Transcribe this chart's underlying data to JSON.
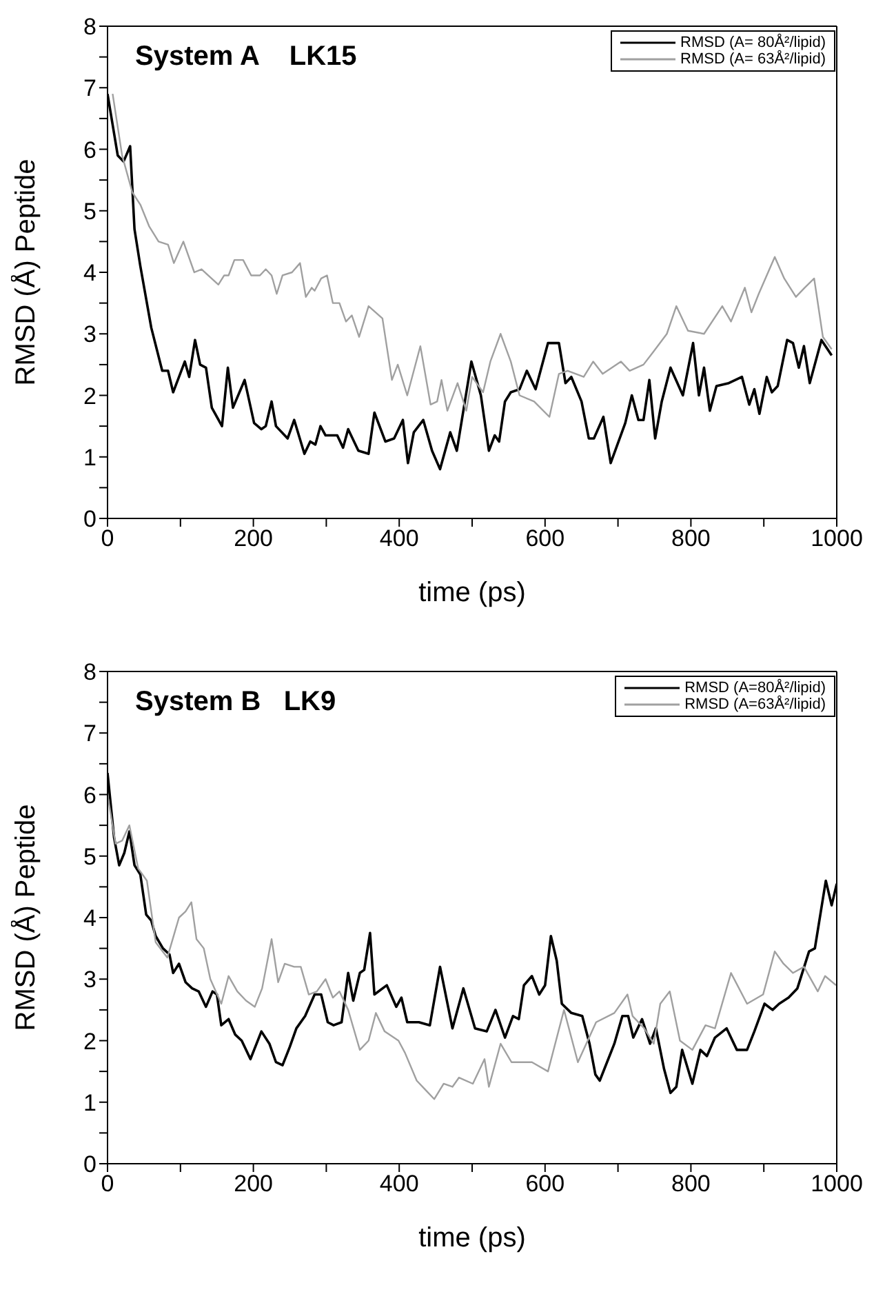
{
  "chart_data": [
    {
      "type": "line",
      "title": "System A    LK15",
      "xlabel": "time (ps)",
      "ylabel": "RMSD (Å) Peptide",
      "xlim": [
        0,
        1000
      ],
      "ylim": [
        0,
        8
      ],
      "xticks": [
        0,
        {
          "value": 100,
          "label": null
        },
        200,
        {
          "value": 300,
          "label": null
        },
        400,
        {
          "value": 500,
          "label": null
        },
        600,
        {
          "value": 700,
          "label": null
        },
        800,
        {
          "value": 900,
          "label": null
        },
        1000
      ],
      "yticks": [
        0,
        {
          "value": 0.5,
          "label": null
        },
        1,
        {
          "value": 1.5,
          "label": null
        },
        2,
        {
          "value": 2.5,
          "label": null
        },
        3,
        {
          "value": 3.5,
          "label": null
        },
        4,
        {
          "value": 4.5,
          "label": null
        },
        5,
        {
          "value": 5.5,
          "label": null
        },
        6,
        {
          "value": 6.5,
          "label": null
        },
        7,
        {
          "value": 7.5,
          "label": null
        },
        8
      ],
      "legend": "top right",
      "marker": "none",
      "line_style": "solid",
      "series": [
        {
          "name": "RMSD (A= 80Å²/lipid)",
          "color": "#000000",
          "x": [
            0,
            14,
            22,
            31,
            37,
            45,
            60,
            75,
            83,
            90,
            106,
            112,
            120,
            127,
            135,
            143,
            157,
            165,
            172,
            188,
            201,
            211,
            217,
            225,
            231,
            247,
            256,
            270,
            278,
            285,
            292,
            299,
            315,
            323,
            330,
            344,
            358,
            366,
            381,
            393,
            405,
            412,
            420,
            433,
            445,
            456,
            470,
            479,
            499,
            512,
            523,
            531,
            537,
            545,
            553,
            565,
            575,
            587,
            604,
            619,
            628,
            636,
            650,
            660,
            667,
            680,
            690,
            710,
            719,
            728,
            735,
            743,
            751,
            760,
            772,
            789,
            803,
            811,
            818,
            826,
            835,
            852,
            870,
            880,
            887,
            894,
            904,
            911,
            919,
            932,
            940,
            948,
            955,
            963,
            979,
            993
          ],
          "values": [
            6.9,
            5.9,
            5.8,
            6.05,
            4.7,
            4.1,
            3.1,
            2.4,
            2.4,
            2.05,
            2.55,
            2.3,
            2.9,
            2.5,
            2.45,
            1.8,
            1.5,
            2.45,
            1.8,
            2.25,
            1.55,
            1.45,
            1.5,
            1.9,
            1.5,
            1.3,
            1.6,
            1.05,
            1.25,
            1.2,
            1.5,
            1.35,
            1.35,
            1.15,
            1.45,
            1.1,
            1.05,
            1.72,
            1.25,
            1.3,
            1.6,
            0.9,
            1.4,
            1.6,
            1.1,
            0.8,
            1.4,
            1.1,
            2.55,
            2.0,
            1.1,
            1.35,
            1.25,
            1.9,
            2.05,
            2.1,
            2.4,
            2.1,
            2.85,
            2.85,
            2.2,
            2.3,
            1.9,
            1.3,
            1.3,
            1.65,
            0.9,
            1.55,
            2.0,
            1.6,
            1.6,
            2.25,
            1.3,
            1.9,
            2.45,
            2.0,
            2.85,
            2.0,
            2.45,
            1.75,
            2.15,
            2.2,
            2.3,
            1.85,
            2.1,
            1.7,
            2.3,
            2.05,
            2.15,
            2.9,
            2.85,
            2.45,
            2.8,
            2.2,
            2.9,
            2.65
          ]
        },
        {
          "name": "RMSD (A= 63Å²/lipid)",
          "color": "#a0a0a0",
          "x": [
            7,
            20,
            34,
            45,
            57,
            70,
            83,
            91,
            104,
            119,
            129,
            138,
            152,
            160,
            166,
            174,
            186,
            197,
            209,
            217,
            225,
            232,
            240,
            253,
            264,
            272,
            280,
            284,
            293,
            301,
            309,
            318,
            327,
            335,
            345,
            358,
            377,
            390,
            398,
            411,
            429,
            443,
            452,
            458,
            466,
            480,
            492,
            500,
            515,
            525,
            539,
            553,
            565,
            585,
            606,
            619,
            631,
            653,
            666,
            679,
            704,
            716,
            735,
            748,
            767,
            780,
            796,
            818,
            843,
            855,
            874,
            883,
            893,
            915,
            928,
            944,
            956,
            969,
            981,
            993
          ],
          "values": [
            6.9,
            5.9,
            5.3,
            5.1,
            4.75,
            4.5,
            4.45,
            4.15,
            4.5,
            4.0,
            4.05,
            3.95,
            3.8,
            3.95,
            3.95,
            4.2,
            4.2,
            3.95,
            3.95,
            4.05,
            3.95,
            3.65,
            3.95,
            4.0,
            4.15,
            3.6,
            3.75,
            3.7,
            3.9,
            3.95,
            3.5,
            3.5,
            3.2,
            3.3,
            2.95,
            3.45,
            3.25,
            2.25,
            2.5,
            2.0,
            2.8,
            1.85,
            1.9,
            2.25,
            1.75,
            2.2,
            1.75,
            2.3,
            2.05,
            2.55,
            3.0,
            2.55,
            2.0,
            1.9,
            1.65,
            2.35,
            2.4,
            2.3,
            2.55,
            2.35,
            2.55,
            2.4,
            2.5,
            2.7,
            3.0,
            3.45,
            3.05,
            3.0,
            3.45,
            3.2,
            3.75,
            3.35,
            3.65,
            4.25,
            3.9,
            3.6,
            3.75,
            3.9,
            2.95,
            2.75
          ]
        }
      ]
    },
    {
      "type": "line",
      "title": "System B   LK9",
      "xlabel": "time (ps)",
      "ylabel": "RMSD (Å) Peptide",
      "xlim": [
        0,
        1000
      ],
      "ylim": [
        0,
        8
      ],
      "xticks": [
        0,
        {
          "value": 100,
          "label": null
        },
        200,
        {
          "value": 300,
          "label": null
        },
        400,
        {
          "value": 500,
          "label": null
        },
        600,
        {
          "value": 700,
          "label": null
        },
        800,
        {
          "value": 900,
          "label": null
        },
        1000
      ],
      "yticks": [
        0,
        {
          "value": 0.5,
          "label": null
        },
        1,
        {
          "value": 1.5,
          "label": null
        },
        2,
        {
          "value": 2.5,
          "label": null
        },
        3,
        {
          "value": 3.5,
          "label": null
        },
        4,
        {
          "value": 4.5,
          "label": null
        },
        5,
        {
          "value": 5.5,
          "label": null
        },
        6,
        {
          "value": 6.5,
          "label": null
        },
        7,
        {
          "value": 7.5,
          "label": null
        },
        8
      ],
      "legend": "top right",
      "marker": "none",
      "line_style": "solid",
      "series": [
        {
          "name": "RMSD (A=80Å²/lipid)",
          "color": "#000000",
          "x": [
            0,
            9,
            16,
            23,
            30,
            37,
            45,
            53,
            60,
            66,
            76,
            85,
            90,
            98,
            107,
            116,
            125,
            135,
            144,
            150,
            156,
            166,
            175,
            184,
            196,
            211,
            222,
            231,
            240,
            250,
            259,
            271,
            284,
            293,
            302,
            310,
            321,
            330,
            337,
            346,
            352,
            360,
            366,
            383,
            396,
            403,
            411,
            427,
            442,
            456,
            473,
            488,
            504,
            520,
            532,
            545,
            556,
            564,
            571,
            582,
            592,
            600,
            608,
            616,
            623,
            636,
            651,
            661,
            669,
            675,
            695,
            706,
            714,
            721,
            733,
            744,
            752,
            763,
            772,
            780,
            788,
            802,
            813,
            822,
            833,
            849,
            863,
            877,
            887,
            901,
            912,
            921,
            934,
            946,
            962,
            970,
            985,
            993,
            1000
          ],
          "values": [
            6.35,
            5.3,
            4.85,
            5.05,
            5.4,
            4.85,
            4.7,
            4.05,
            3.95,
            3.7,
            3.5,
            3.4,
            3.1,
            3.25,
            2.95,
            2.85,
            2.8,
            2.55,
            2.8,
            2.75,
            2.25,
            2.35,
            2.1,
            2.0,
            1.7,
            2.15,
            1.95,
            1.65,
            1.6,
            1.9,
            2.2,
            2.4,
            2.75,
            2.75,
            2.3,
            2.25,
            2.3,
            3.1,
            2.65,
            3.1,
            3.15,
            3.75,
            2.75,
            2.9,
            2.55,
            2.7,
            2.3,
            2.3,
            2.25,
            3.2,
            2.2,
            2.85,
            2.2,
            2.15,
            2.5,
            2.05,
            2.4,
            2.35,
            2.9,
            3.05,
            2.75,
            2.9,
            3.7,
            3.3,
            2.6,
            2.45,
            2.4,
            1.95,
            1.45,
            1.35,
            1.95,
            2.4,
            2.4,
            2.05,
            2.35,
            1.95,
            2.2,
            1.55,
            1.15,
            1.25,
            1.85,
            1.3,
            1.85,
            1.75,
            2.05,
            2.2,
            1.85,
            1.85,
            2.15,
            2.6,
            2.5,
            2.6,
            2.7,
            2.85,
            3.45,
            3.5,
            4.6,
            4.2,
            4.55
          ]
        },
        {
          "name": "RMSD (A=63Å²/lipid)",
          "color": "#a0a0a0",
          "x": [
            0,
            11,
            20,
            30,
            42,
            54,
            66,
            82,
            98,
            107,
            115,
            122,
            132,
            141,
            156,
            166,
            178,
            190,
            202,
            212,
            225,
            234,
            243,
            256,
            265,
            276,
            287,
            299,
            309,
            318,
            330,
            346,
            358,
            368,
            380,
            399,
            408,
            424,
            436,
            448,
            461,
            473,
            482,
            501,
            517,
            523,
            539,
            554,
            582,
            604,
            626,
            645,
            670,
            695,
            713,
            720,
            736,
            749,
            758,
            771,
            785,
            802,
            820,
            833,
            855,
            877,
            899,
            915,
            927,
            940,
            955,
            974,
            984,
            999
          ],
          "values": [
            6.0,
            5.2,
            5.25,
            5.5,
            4.8,
            4.6,
            3.6,
            3.35,
            4.0,
            4.1,
            4.25,
            3.65,
            3.5,
            3.0,
            2.6,
            3.05,
            2.8,
            2.65,
            2.55,
            2.85,
            3.65,
            2.95,
            3.25,
            3.2,
            3.2,
            2.75,
            2.8,
            3.0,
            2.7,
            2.8,
            2.5,
            1.85,
            2.0,
            2.45,
            2.15,
            2.0,
            1.8,
            1.35,
            1.2,
            1.05,
            1.3,
            1.25,
            1.4,
            1.3,
            1.7,
            1.25,
            1.95,
            1.65,
            1.65,
            1.5,
            2.5,
            1.65,
            2.3,
            2.45,
            2.75,
            2.4,
            2.2,
            1.95,
            2.6,
            2.8,
            2.0,
            1.85,
            2.25,
            2.2,
            3.1,
            2.6,
            2.75,
            3.45,
            3.25,
            3.1,
            3.2,
            2.8,
            3.05,
            2.9
          ]
        }
      ]
    }
  ]
}
